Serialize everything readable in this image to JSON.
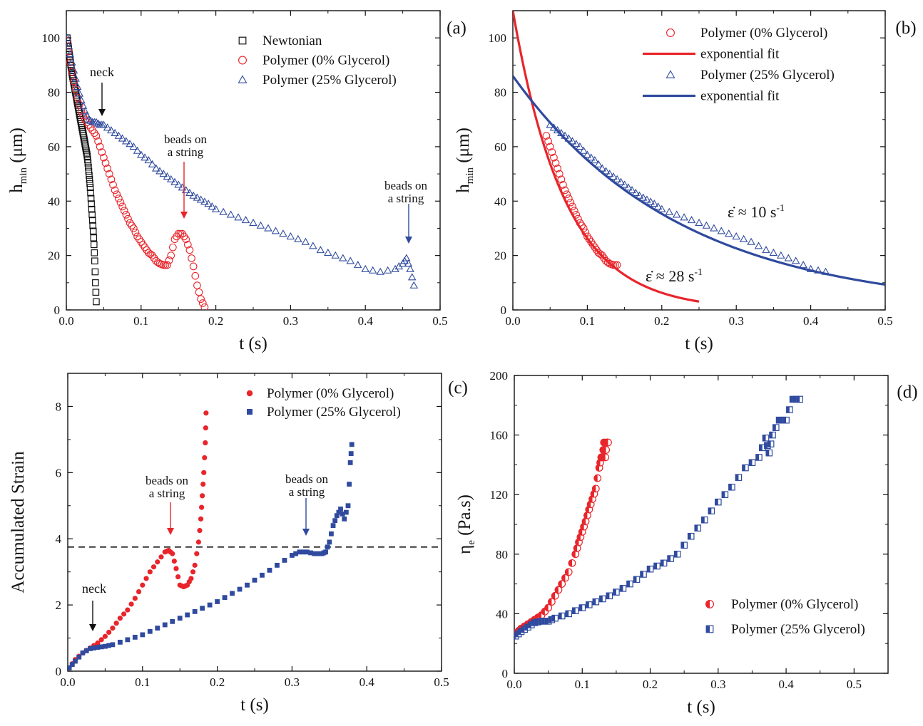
{
  "colors": {
    "black": "#111111",
    "red": "#e8252b",
    "blue": "#2f4a9e",
    "blue_light": "#8fa2d8"
  },
  "chart_data": [
    {
      "panel_label": "(a)",
      "type": "scatter",
      "xlabel": "t (s)",
      "ylabel_main": "h",
      "ylabel_sub": "min",
      "ylabel_unit": " (μm)",
      "xlim": [
        0,
        0.5
      ],
      "ylim": [
        0,
        110
      ],
      "xticks": [
        0.0,
        0.1,
        0.2,
        0.3,
        0.4,
        0.5
      ],
      "xtick_labels": [
        "0.0",
        "0.1",
        "0.2",
        "0.3",
        "0.4",
        "0.5"
      ],
      "yticks": [
        0,
        20,
        40,
        60,
        80,
        100
      ],
      "ytick_labels": [
        "0",
        "20",
        "40",
        "60",
        "80",
        "100"
      ],
      "legend": "top-right",
      "series": [
        {
          "name": "Newtonian",
          "marker": "square-open",
          "color": "#111111",
          "x": [
            0.001,
            0.002,
            0.003,
            0.004,
            0.005,
            0.006,
            0.007,
            0.008,
            0.009,
            0.01,
            0.011,
            0.012,
            0.013,
            0.014,
            0.015,
            0.016,
            0.017,
            0.018,
            0.019,
            0.02,
            0.021,
            0.022,
            0.023,
            0.024,
            0.025,
            0.026,
            0.027,
            0.028,
            0.029,
            0.03,
            0.031,
            0.032,
            0.033,
            0.034,
            0.035,
            0.036,
            0.037,
            0.038,
            0.039,
            0.04
          ],
          "y": [
            100,
            98,
            96,
            94,
            92,
            90,
            88,
            86.5,
            85,
            83.5,
            82,
            80.5,
            79,
            77.5,
            76,
            74.5,
            73,
            71.5,
            70,
            68.5,
            67,
            65.5,
            64,
            62.5,
            61,
            59.5,
            58,
            56.5,
            54,
            51,
            48,
            45,
            41,
            37,
            33,
            29,
            24,
            18,
            10,
            3
          ]
        },
        {
          "name": "Polymer (0% Glycerol)",
          "marker": "circle-open",
          "color": "#e8252b",
          "x": [
            0.001,
            0.005,
            0.01,
            0.015,
            0.02,
            0.025,
            0.03,
            0.035,
            0.04,
            0.045,
            0.05,
            0.055,
            0.06,
            0.065,
            0.07,
            0.075,
            0.08,
            0.085,
            0.09,
            0.095,
            0.1,
            0.105,
            0.11,
            0.115,
            0.12,
            0.125,
            0.13,
            0.135,
            0.14,
            0.145,
            0.15,
            0.155,
            0.16,
            0.165,
            0.17,
            0.175,
            0.18,
            0.185
          ],
          "y": [
            99,
            91,
            84,
            78,
            73,
            70,
            68,
            66,
            64,
            60,
            56,
            52,
            48,
            44,
            41,
            38,
            35,
            32,
            30,
            27,
            25,
            23,
            21,
            20,
            18,
            17,
            16.5,
            16.5,
            20,
            26,
            28,
            28,
            26,
            22,
            16,
            9,
            4,
            1
          ]
        },
        {
          "name": "Polymer (25% Glycerol)",
          "marker": "triangle-open",
          "color": "#2f4a9e",
          "x": [
            0.001,
            0.005,
            0.01,
            0.015,
            0.02,
            0.025,
            0.03,
            0.035,
            0.04,
            0.045,
            0.05,
            0.06,
            0.07,
            0.08,
            0.09,
            0.1,
            0.11,
            0.12,
            0.13,
            0.14,
            0.15,
            0.16,
            0.17,
            0.18,
            0.19,
            0.2,
            0.22,
            0.24,
            0.26,
            0.28,
            0.3,
            0.32,
            0.34,
            0.36,
            0.38,
            0.4,
            0.42,
            0.44,
            0.45,
            0.455,
            0.46,
            0.465
          ],
          "y": [
            100,
            94,
            88,
            82,
            77,
            73,
            70,
            69,
            69,
            68,
            68,
            66,
            64,
            62,
            60,
            57,
            55,
            52,
            50,
            48,
            46,
            44,
            42,
            40.5,
            39,
            37,
            35,
            33,
            31,
            29,
            27,
            25,
            22,
            20,
            18,
            15,
            14,
            15,
            17,
            19,
            15,
            9
          ]
        }
      ],
      "annotations": [
        {
          "lines": [
            "neck"
          ],
          "color": "#111111"
        },
        {
          "lines": [
            "beads on",
            "a string"
          ],
          "color": "#e8252b"
        },
        {
          "lines": [
            "beads on",
            "a string"
          ],
          "color": "#2f4a9e"
        }
      ]
    },
    {
      "panel_label": "(b)",
      "type": "scatter",
      "xlabel": "t (s)",
      "ylabel_main": "h",
      "ylabel_sub": "min",
      "ylabel_unit": " (μm)",
      "xlim": [
        0,
        0.5
      ],
      "ylim": [
        0,
        110
      ],
      "xticks": [
        0.0,
        0.1,
        0.2,
        0.3,
        0.4,
        0.5
      ],
      "xtick_labels": [
        "0.0",
        "0.1",
        "0.2",
        "0.3",
        "0.4",
        "0.5"
      ],
      "yticks": [
        0,
        20,
        40,
        60,
        80,
        100
      ],
      "ytick_labels": [
        "0",
        "20",
        "40",
        "60",
        "80",
        "100"
      ],
      "legend": "top-right",
      "series": [
        {
          "name": "Polymer (0% Glycerol)",
          "marker": "circle-open",
          "color": "#e8252b",
          "x": [
            0.045,
            0.05,
            0.055,
            0.06,
            0.065,
            0.07,
            0.075,
            0.08,
            0.085,
            0.09,
            0.095,
            0.1,
            0.105,
            0.11,
            0.115,
            0.12,
            0.125,
            0.13,
            0.135,
            0.14
          ],
          "y": [
            64,
            60,
            56,
            52,
            48,
            44,
            41,
            38,
            35,
            32,
            30,
            27,
            25,
            23,
            21,
            20,
            18,
            17,
            16.5,
            16.5
          ]
        },
        {
          "name": "exponential fit",
          "marker": "line",
          "color": "#e8252b",
          "fit": {
            "a": 110,
            "rate": 14.3,
            "t0": 0.0,
            "t1": 0.25
          }
        },
        {
          "name": "Polymer (25% Glycerol)",
          "marker": "triangle-open",
          "color": "#2f4a9e",
          "x": [
            0.05,
            0.06,
            0.07,
            0.08,
            0.09,
            0.1,
            0.11,
            0.12,
            0.13,
            0.14,
            0.15,
            0.16,
            0.17,
            0.18,
            0.19,
            0.2,
            0.22,
            0.24,
            0.26,
            0.28,
            0.3,
            0.32,
            0.34,
            0.36,
            0.38,
            0.4,
            0.42
          ],
          "y": [
            68,
            66,
            64,
            62,
            60,
            57,
            55,
            52,
            50,
            48,
            46,
            44,
            42,
            40.5,
            39,
            37,
            35,
            33,
            31,
            29,
            27,
            25,
            22,
            20,
            18,
            15,
            14
          ]
        },
        {
          "name": "exponential fit",
          "marker": "line",
          "color": "#2f4a9e",
          "fit": {
            "a": 86,
            "rate": 4.45,
            "t0": 0.0,
            "t1": 0.5
          }
        }
      ],
      "annotations": [
        {
          "text": "ε̇ ≈ 28 s",
          "sup": "-1",
          "color": "#e8252b"
        },
        {
          "text": "ε̇ ≈ 10 s",
          "sup": "-1",
          "color": "#2f4a9e"
        }
      ]
    },
    {
      "panel_label": "(c)",
      "type": "scatter",
      "xlabel": "t (s)",
      "ylabel_main": "Accumulated Strain",
      "ylabel_sub": "",
      "ylabel_unit": "",
      "xlim": [
        0,
        0.5
      ],
      "ylim": [
        0,
        9
      ],
      "xticks": [
        0.0,
        0.1,
        0.2,
        0.3,
        0.4,
        0.5
      ],
      "xtick_labels": [
        "0.0",
        "0.1",
        "0.2",
        "0.3",
        "0.4",
        "0.5"
      ],
      "yticks": [
        0,
        2,
        4,
        6,
        8
      ],
      "ytick_labels": [
        "0",
        "2",
        "4",
        "6",
        "8"
      ],
      "legend": "top-right",
      "reference_line_y": 3.75,
      "series": [
        {
          "name": "Polymer (0% Glycerol)",
          "marker": "circle-filled",
          "color": "#e8252b",
          "x": [
            0.002,
            0.01,
            0.02,
            0.03,
            0.04,
            0.05,
            0.06,
            0.07,
            0.08,
            0.09,
            0.1,
            0.11,
            0.12,
            0.13,
            0.135,
            0.14,
            0.145,
            0.15,
            0.155,
            0.16,
            0.165,
            0.17,
            0.175,
            0.178,
            0.18,
            0.182,
            0.184,
            0.185
          ],
          "y": [
            0.1,
            0.35,
            0.55,
            0.7,
            0.85,
            1.05,
            1.3,
            1.6,
            1.85,
            2.2,
            2.6,
            3.0,
            3.3,
            3.6,
            3.65,
            3.55,
            3.1,
            2.6,
            2.55,
            2.6,
            2.8,
            3.2,
            3.9,
            4.6,
            5.3,
            6.0,
            6.9,
            7.8
          ]
        },
        {
          "name": "Polymer (25% Glycerol)",
          "marker": "square-filled",
          "color": "#2f4a9e",
          "x": [
            0.002,
            0.01,
            0.02,
            0.03,
            0.04,
            0.05,
            0.06,
            0.08,
            0.1,
            0.12,
            0.14,
            0.16,
            0.18,
            0.2,
            0.22,
            0.24,
            0.26,
            0.28,
            0.3,
            0.31,
            0.32,
            0.33,
            0.34,
            0.345,
            0.35,
            0.355,
            0.36,
            0.365,
            0.37,
            0.375,
            0.378,
            0.38
          ],
          "y": [
            0.1,
            0.3,
            0.55,
            0.68,
            0.72,
            0.75,
            0.8,
            0.95,
            1.1,
            1.3,
            1.5,
            1.7,
            1.9,
            2.1,
            2.35,
            2.6,
            2.9,
            3.2,
            3.5,
            3.6,
            3.6,
            3.55,
            3.55,
            3.6,
            3.9,
            4.4,
            4.7,
            4.9,
            4.6,
            5.0,
            6.3,
            6.85
          ]
        }
      ],
      "annotations": [
        {
          "lines": [
            "neck"
          ],
          "color": "#111111"
        },
        {
          "lines": [
            "beads on",
            "a string"
          ],
          "color": "#e8252b"
        },
        {
          "lines": [
            "beads on",
            "a string"
          ],
          "color": "#2f4a9e"
        }
      ]
    },
    {
      "panel_label": "(d)",
      "type": "scatter",
      "xlabel": "t (s)",
      "ylabel_main": "η",
      "ylabel_sub": "e",
      "ylabel_unit": " (Pa.s)",
      "xlim": [
        0,
        0.55
      ],
      "ylim": [
        0,
        200
      ],
      "xticks": [
        0.0,
        0.1,
        0.2,
        0.3,
        0.4,
        0.5
      ],
      "xtick_labels": [
        "0.0",
        "0.1",
        "0.2",
        "0.3",
        "0.4",
        "0.5"
      ],
      "yticks": [
        0,
        40,
        80,
        120,
        160,
        200
      ],
      "ytick_labels": [
        "0",
        "40",
        "80",
        "120",
        "160",
        "200"
      ],
      "legend": "bottom-right",
      "series": [
        {
          "name": "Polymer (0% Glycerol)",
          "marker": "circle-half",
          "color": "#e8252b",
          "x": [
            0.003,
            0.01,
            0.02,
            0.03,
            0.04,
            0.05,
            0.06,
            0.07,
            0.08,
            0.09,
            0.095,
            0.1,
            0.105,
            0.11,
            0.115,
            0.12,
            0.125,
            0.128,
            0.13,
            0.132,
            0.134,
            0.136,
            0.138
          ],
          "y": [
            27,
            30,
            33,
            36,
            39,
            44,
            52,
            60,
            68,
            80,
            88,
            95,
            102,
            110,
            117,
            124,
            138,
            145,
            145,
            155,
            145,
            155,
            155
          ]
        },
        {
          "name": "Polymer (25% Glycerol)",
          "marker": "square-half",
          "color": "#2f4a9e",
          "x": [
            0.002,
            0.01,
            0.02,
            0.03,
            0.04,
            0.05,
            0.06,
            0.08,
            0.1,
            0.12,
            0.14,
            0.16,
            0.18,
            0.2,
            0.22,
            0.24,
            0.26,
            0.28,
            0.3,
            0.32,
            0.34,
            0.36,
            0.37,
            0.375,
            0.38,
            0.39,
            0.4,
            0.41,
            0.42
          ],
          "y": [
            25,
            28,
            31,
            34,
            35,
            35,
            37,
            40,
            44,
            48,
            52,
            57,
            63,
            70,
            74,
            80,
            92,
            103,
            115,
            125,
            138,
            145,
            158,
            148,
            160,
            170,
            170,
            184,
            184
          ]
        }
      ],
      "annotations": []
    }
  ]
}
